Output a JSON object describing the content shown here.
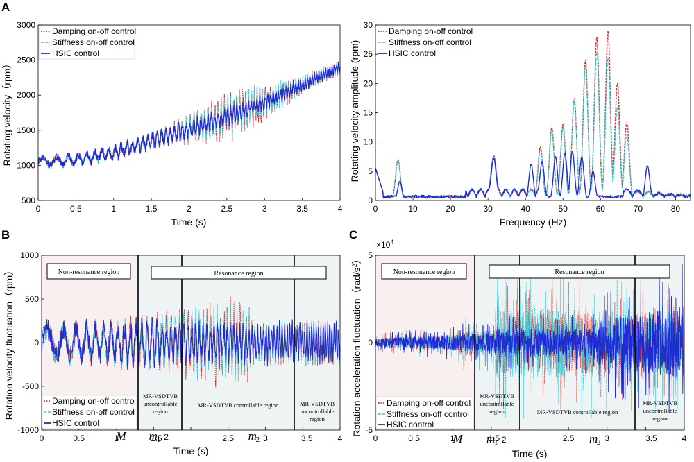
{
  "panels": {
    "a": "A",
    "b": "B",
    "c": "C"
  },
  "legend": {
    "damping": "Damping on-off control",
    "stiffness": "Stiffness on-off control",
    "hsic": "HSIC control",
    "damping_b": "Damping on-off contro",
    "damping_c": "Damping on-off control"
  },
  "colors": {
    "damping": "#e0211f",
    "stiffness": "#2fd0dc",
    "hsic": "#1f2bd6",
    "left_bg": "#f7f0ef",
    "mid_bg": "#eef3f4"
  },
  "regions": {
    "non_resonance": "Non-resonance region",
    "resonance": "Resonance region",
    "mr_line1": "MR-VSDTVB",
    "uncontrollable_line2": "uncontrollable",
    "region_word": "region",
    "controllable": "MR-VSDTVB controllable region"
  },
  "markers": {
    "M": "M",
    "m": "m",
    "sub1": "1",
    "sub2": "2",
    "after_m1": "2",
    "after_m2": "3.5"
  },
  "exponent": {
    "base": "×10",
    "power": "4"
  },
  "chart_data": [
    {
      "id": "A-left",
      "type": "line",
      "xlabel": "Time (s)",
      "ylabel": "Rotating velocity（rpm）",
      "xlim": [
        0,
        4
      ],
      "ylim": [
        500,
        3000
      ],
      "xticks": [
        "0",
        "0.5",
        "1",
        "1.5",
        "2",
        "2.5",
        "3",
        "3.5",
        "4"
      ],
      "yticks": [
        "500",
        "1000",
        "1500",
        "2000",
        "2500",
        "3000"
      ],
      "trend": {
        "t": [
          0,
          0.5,
          1.0,
          1.5,
          2.0,
          2.5,
          3.0,
          3.5,
          4.0
        ],
        "rpm": [
          1050,
          1080,
          1180,
          1350,
          1520,
          1680,
          1900,
          2150,
          2400
        ]
      },
      "series": [
        {
          "name": "Damping on-off control",
          "max_deviation_rpm": 500
        },
        {
          "name": "Stiffness on-off control",
          "max_deviation_rpm": 450
        },
        {
          "name": "HSIC control",
          "max_deviation_rpm": 250
        }
      ]
    },
    {
      "id": "A-right",
      "type": "line",
      "xlabel": "Frequency (Hz)",
      "ylabel": "Rotating velocity amplitude (rpm)",
      "xlim": [
        0,
        84
      ],
      "ylim": [
        0,
        30
      ],
      "xticks": [
        "0",
        "10",
        "20",
        "30",
        "40",
        "50",
        "60",
        "70",
        "80"
      ],
      "yticks": [
        "0",
        "5",
        "10",
        "15",
        "20",
        "25",
        "30"
      ],
      "peaks": {
        "damping_hz": [
          6,
          31.5,
          44,
          47,
          50,
          53,
          56,
          59,
          62,
          64.5,
          67
        ],
        "damping_rpm": [
          7,
          7.4,
          8,
          12.5,
          13,
          17.5,
          24,
          28,
          29,
          20,
          12
        ],
        "stiffness_rpm": [
          6.8,
          7.2,
          7.5,
          12,
          12.5,
          17,
          23,
          25.5,
          24.5,
          16,
          10
        ],
        "hsic_hz": [
          0,
          6.5,
          31.5,
          41.5,
          44.5,
          48,
          50.5,
          52.5,
          55,
          58,
          72.5
        ],
        "hsic_rpm": [
          5.5,
          3.3,
          7,
          5,
          6,
          7.5,
          8.1,
          8.4,
          7.5,
          5,
          5.2
        ]
      },
      "series": [
        {
          "name": "Damping on-off control"
        },
        {
          "name": "Stiffness on-off control"
        },
        {
          "name": "HSIC control"
        }
      ]
    },
    {
      "id": "B",
      "type": "line",
      "xlabel": "Time (s)",
      "ylabel": "Rotation velocity fluctuation（rpm）",
      "xlim": [
        0,
        4
      ],
      "ylim": [
        -1000,
        1000
      ],
      "xticks": [
        "0",
        "0.5",
        "1",
        "1.5",
        "2",
        "2.5",
        "3",
        "3.5",
        "4"
      ],
      "yticks": [
        "-1000",
        "-500",
        "0",
        "500",
        "1000"
      ],
      "region_bounds_s": [
        1.07,
        1.55,
        2.82
      ],
      "series": [
        {
          "name": "Damping on-off control",
          "peak_rpm": 520
        },
        {
          "name": "Stiffness on-off control",
          "peak_rpm": 470
        },
        {
          "name": "HSIC control",
          "peak_rpm": 320
        }
      ]
    },
    {
      "id": "C",
      "type": "line",
      "xlabel": "Time (s)",
      "ylabel": "Rotation acceleration fluctuation（rad/s²）",
      "ylabel_main": "Rotation acceleration fluctuation（rad/s",
      "ylabel_sup": "2",
      "ylabel_end": "）",
      "xlim": [
        0,
        4
      ],
      "ylim": [
        -5,
        5
      ],
      "yscale_note": "×10^4",
      "xticks": [
        "0",
        "0.5",
        "1",
        "1.5",
        "2",
        "2.5",
        "3",
        "3.5",
        "4"
      ],
      "yticks": [
        "-5",
        "0",
        "5"
      ],
      "region_bounds_s": [
        1.07,
        1.55,
        2.82
      ],
      "series": [
        {
          "name": "Damping on-off control",
          "peak_1e4": 4.0
        },
        {
          "name": "Stiffness on-off control",
          "peak_1e4": 4.5
        },
        {
          "name": "HSIC control",
          "peak_1e4": 2.5
        }
      ]
    }
  ]
}
